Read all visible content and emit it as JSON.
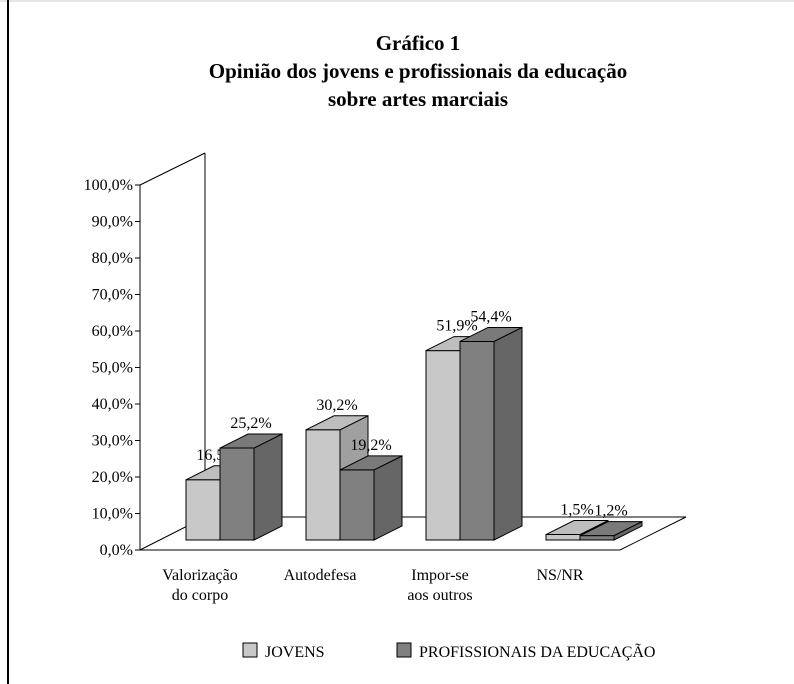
{
  "chart_data": {
    "type": "bar3d",
    "title": [
      "Gráfico 1",
      "Opinião dos jovens e profissionais da educação",
      "sobre artes marciais"
    ],
    "categories": [
      "Valorização do corpo",
      "Autodefesa",
      "Impor-se aos outros",
      "NS/NR"
    ],
    "series": [
      {
        "name": "JOVENS",
        "color": "#c8c8c8",
        "values": [
          16.5,
          30.2,
          51.9,
          1.5
        ],
        "value_labels": [
          "16,5%",
          "30,2%",
          "51,9%",
          "1,5%"
        ]
      },
      {
        "name": "PROFISSIONAIS DA EDUCAÇÃO",
        "color": "#808080",
        "values": [
          25.2,
          19.2,
          54.4,
          1.2
        ],
        "value_labels": [
          "25,2%",
          "19,2%",
          "54,4%",
          "1,2%"
        ]
      }
    ],
    "ylim": [
      0,
      100
    ],
    "yticks": [
      {
        "value": 0,
        "label": "0,0%"
      },
      {
        "value": 10,
        "label": "10,0%"
      },
      {
        "value": 20,
        "label": "20,0%"
      },
      {
        "value": 30,
        "label": "30,0%"
      },
      {
        "value": 40,
        "label": "40,0%"
      },
      {
        "value": 50,
        "label": "50,0%"
      },
      {
        "value": 60,
        "label": "60,0%"
      },
      {
        "value": 70,
        "label": "70,0%"
      },
      {
        "value": 80,
        "label": "80,0%"
      },
      {
        "value": 90,
        "label": "90,0%"
      },
      {
        "value": 100,
        "label": "100,0%"
      }
    ]
  }
}
